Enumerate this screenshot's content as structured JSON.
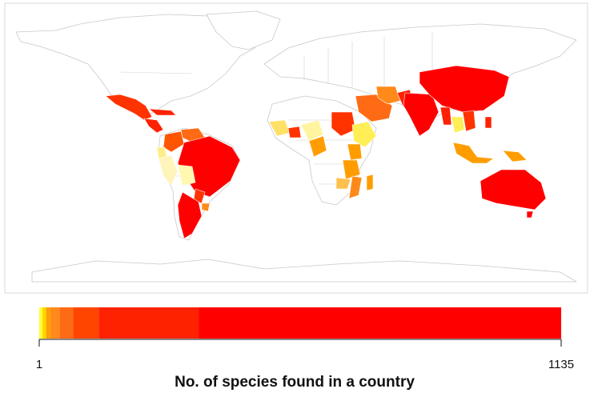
{
  "legend": {
    "title": "No. of species found in a country",
    "min_label": "1",
    "max_label": "1135",
    "min_value": 1,
    "max_value": 1135,
    "color_steps": [
      {
        "from": 1,
        "to": 8,
        "color": "#ffff33"
      },
      {
        "from": 8,
        "to": 16,
        "color": "#ffd700"
      },
      {
        "from": 16,
        "to": 25,
        "color": "#ff9d00"
      },
      {
        "from": 25,
        "to": 45,
        "color": "#ff8a1a"
      },
      {
        "from": 45,
        "to": 75,
        "color": "#ff6a14"
      },
      {
        "from": 75,
        "to": 130,
        "color": "#ff4500"
      },
      {
        "from": 130,
        "to": 348,
        "color": "#ff2200"
      },
      {
        "from": 348,
        "to": 1135,
        "color": "#ff0000"
      }
    ]
  },
  "map": {
    "land_fill": "#ffffff",
    "border_color": "#c8c8c8",
    "frame_color": "#cfcfcf",
    "highlighted_regions": [
      {
        "name": "Mexico",
        "color": "#ff3300"
      },
      {
        "name": "Central America",
        "color": "#ff2200"
      },
      {
        "name": "Caribbean",
        "color": "#ff2200"
      },
      {
        "name": "Venezuela",
        "color": "#ff6a14"
      },
      {
        "name": "Colombia",
        "color": "#ff5500"
      },
      {
        "name": "Ecuador",
        "color": "#ffee88"
      },
      {
        "name": "Peru",
        "color": "#fff4bb"
      },
      {
        "name": "Brazil",
        "color": "#ff0000"
      },
      {
        "name": "Bolivia",
        "color": "#fff8b0"
      },
      {
        "name": "Paraguay",
        "color": "#ff3300"
      },
      {
        "name": "Argentina",
        "color": "#ff0000"
      },
      {
        "name": "Uruguay",
        "color": "#ff8a1a"
      },
      {
        "name": "West Africa",
        "color": "#ffe066"
      },
      {
        "name": "Guinea coast",
        "color": "#ff3300"
      },
      {
        "name": "Nigeria",
        "color": "#fff4a0"
      },
      {
        "name": "Cameroon",
        "color": "#ff9d00"
      },
      {
        "name": "Sudan",
        "color": "#ff3300"
      },
      {
        "name": "Ethiopia",
        "color": "#ffee55"
      },
      {
        "name": "Kenya",
        "color": "#ff9d00"
      },
      {
        "name": "Tanzania",
        "color": "#ff9d00"
      },
      {
        "name": "Mozambique",
        "color": "#ff8a1a"
      },
      {
        "name": "Zambia",
        "color": "#ffc04d"
      },
      {
        "name": "Madagascar",
        "color": "#ff9d00"
      },
      {
        "name": "Arabia",
        "color": "#ff6a14"
      },
      {
        "name": "Iran",
        "color": "#ff8a1a"
      },
      {
        "name": "Pakistan",
        "color": "#ff2200"
      },
      {
        "name": "India",
        "color": "#ff0000"
      },
      {
        "name": "China",
        "color": "#ff0000"
      },
      {
        "name": "Myanmar",
        "color": "#ff2200"
      },
      {
        "name": "Thailand",
        "color": "#ffee55"
      },
      {
        "name": "Indochina",
        "color": "#ff3300"
      },
      {
        "name": "Indonesia",
        "color": "#ff9d00"
      },
      {
        "name": "Papua New Guinea",
        "color": "#ff9d00"
      },
      {
        "name": "Philippines",
        "color": "#ff2200"
      },
      {
        "name": "Australia",
        "color": "#ff0000"
      }
    ]
  }
}
